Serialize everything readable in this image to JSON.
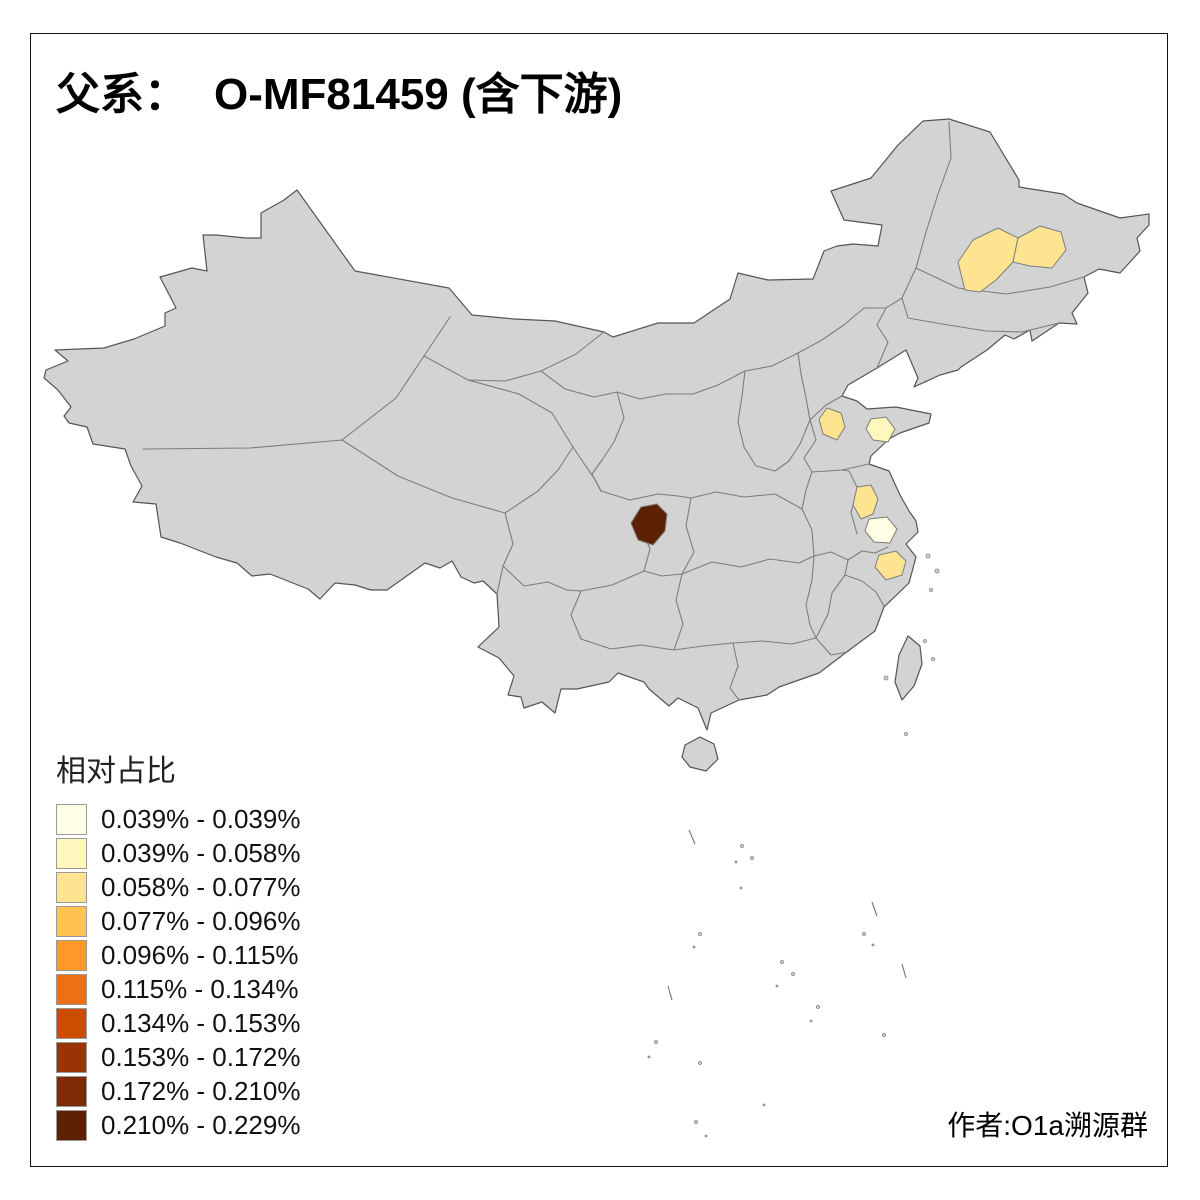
{
  "title": {
    "prefix": "父系：",
    "name": "O-MF81459 (含下游)"
  },
  "legend": {
    "title": "相对占比",
    "items": [
      {
        "range": "0.039% - 0.039%",
        "color": "#FFFFE5"
      },
      {
        "range": "0.039% - 0.058%",
        "color": "#FFF7BC"
      },
      {
        "range": "0.058% - 0.077%",
        "color": "#FEE391"
      },
      {
        "range": "0.077% - 0.096%",
        "color": "#FEC44F"
      },
      {
        "range": "0.096% - 0.115%",
        "color": "#FE9929"
      },
      {
        "range": "0.115% - 0.134%",
        "color": "#EC7014"
      },
      {
        "range": "0.134% - 0.153%",
        "color": "#CC4C02"
      },
      {
        "range": "0.153% - 0.172%",
        "color": "#993404"
      },
      {
        "range": "0.172% - 0.210%",
        "color": "#7E2B05"
      },
      {
        "range": "0.210% - 0.229%",
        "color": "#5C2104"
      }
    ]
  },
  "attribution": "作者:O1a溯源群",
  "map": {
    "land_color": "#D3D3D3",
    "border_color": "#7D7D7D",
    "outline_color": "#555555",
    "background": "#FFFFFF",
    "regions": [
      {
        "name": "heilongjiang-area-a",
        "color": "#FEE391"
      },
      {
        "name": "heilongjiang-area-b",
        "color": "#FEE391"
      },
      {
        "name": "shandong-west",
        "color": "#FEE391"
      },
      {
        "name": "shandong-peninsula",
        "color": "#FFF7BC"
      },
      {
        "name": "jiangsu-central",
        "color": "#FEE391"
      },
      {
        "name": "jiangsu-south",
        "color": "#FFFFE5"
      },
      {
        "name": "shanghai-zhejiang",
        "color": "#FEE391"
      },
      {
        "name": "sichuan-east",
        "color": "#5C2104"
      }
    ]
  }
}
